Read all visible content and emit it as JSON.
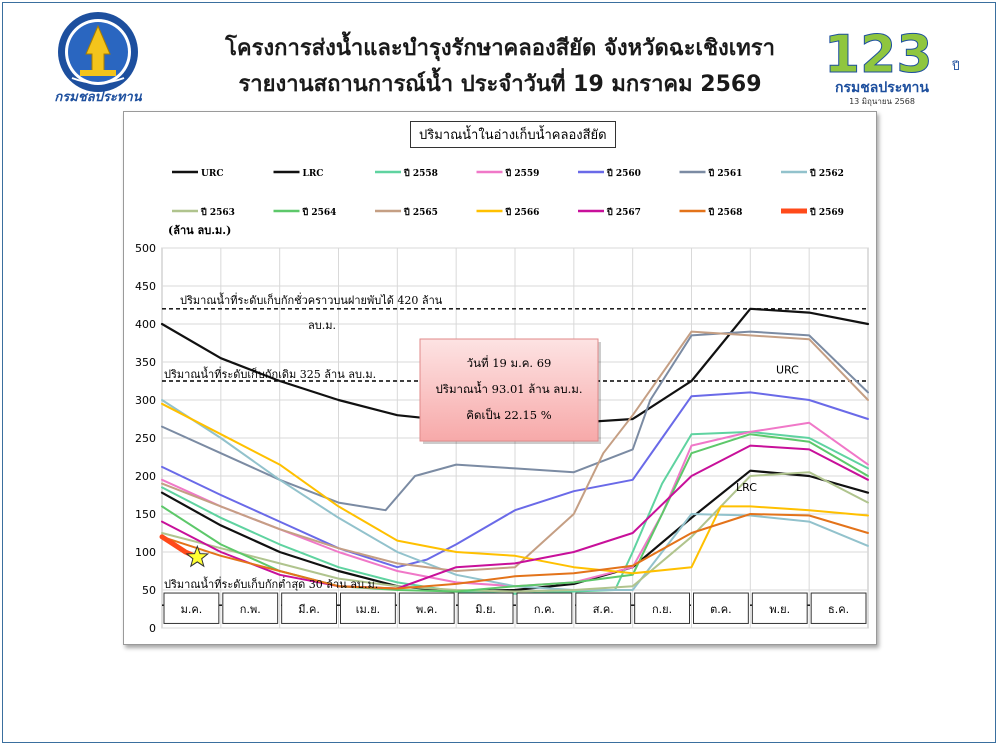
{
  "header": {
    "title_line1": "โครงการส่งน้ำและบำรุงรักษาคลองสียัด จังหวัดฉะเชิงเทรา",
    "title_line2": "รายงานสถานการณ์น้ำ ประจำวันที่ 19 มกราคม 2569",
    "left_logo_text": "กรมชลประทาน",
    "right_logo_number": "123",
    "right_logo_suffix": "ปี",
    "right_logo_org": "กรมชลประทาน",
    "right_logo_date": "13 มิถุนายน 2568"
  },
  "colors": {
    "URC": "#111111",
    "LRC": "#111111",
    "2558": "#5fd3a0",
    "2559": "#f078c8",
    "2560": "#6a6ae8",
    "2561": "#7b8ba3",
    "2562": "#92c2cc",
    "2563": "#b0c48e",
    "2564": "#5dc86a",
    "2565": "#c59f84",
    "2566": "#ffc000",
    "2567": "#c8109a",
    "2568": "#e3731a",
    "2569": "#ff4a1a"
  },
  "chart_data": {
    "type": "line",
    "title": "ปริมาณน้ำในอ่างเก็บน้ำคลองสียัด",
    "ylabel": "(ล้าน ลบ.ม.)",
    "ylim": [
      0,
      500
    ],
    "yticks": [
      0,
      50,
      100,
      150,
      200,
      250,
      300,
      350,
      400,
      450,
      500
    ],
    "xlim": [
      0,
      12
    ],
    "categories": [
      "ม.ค.",
      "ก.พ.",
      "มี.ค.",
      "เม.ย.",
      "พ.ค.",
      "มิ.ย.",
      "ก.ค.",
      "ส.ค.",
      "ก.ย.",
      "ต.ค.",
      "พ.ย.",
      "ธ.ค."
    ],
    "legend": "top",
    "reference_lines": [
      {
        "value": 420,
        "label_line1": "ปริมาณน้ำที่ระดับเก็บกักชั่วคราวบนฝายพับได้ 420 ล้าน",
        "label_line2": "ลบ.ม."
      },
      {
        "value": 325,
        "label": "ปริมาณน้ำที่ระดับเก็บกักเดิม 325 ล้าน ลบ.ม."
      },
      {
        "value": 30,
        "label": "ปริมาณน้ำที่ระดับเก็บกักต่ำสุด 30 ล้าน ลบ.ม."
      }
    ],
    "curve_labels": {
      "URC": "URC",
      "LRC": "LRC"
    },
    "annotation": {
      "line1": "วันที่ 19 ม.ค. 69",
      "line2": "ปริมาณน้ำ 93.01 ล้าน ลบ.ม.",
      "line3": "คิดเป็น 22.15 %"
    },
    "current_point": {
      "x": 0.6,
      "y": 93.01
    },
    "series": [
      {
        "key": "URC",
        "name": "URC",
        "x": [
          0,
          1,
          2,
          3,
          4,
          5,
          6,
          7,
          8,
          9,
          10,
          11,
          12
        ],
        "y": [
          400,
          355,
          325,
          300,
          280,
          272,
          270,
          270,
          275,
          325,
          420,
          415,
          400
        ]
      },
      {
        "key": "LRC",
        "name": "LRC",
        "x": [
          0,
          1,
          2,
          3,
          4,
          5,
          6,
          7,
          8,
          9,
          10,
          11,
          12
        ],
        "y": [
          178,
          135,
          100,
          75,
          55,
          48,
          50,
          58,
          80,
          145,
          207,
          200,
          178
        ]
      },
      {
        "key": "2558",
        "name": "ปี 2558",
        "x": [
          0,
          1,
          2,
          3,
          4,
          5,
          6,
          7,
          7.7,
          8,
          8.5,
          9,
          10,
          11,
          12
        ],
        "y": [
          185,
          145,
          110,
          80,
          60,
          48,
          45,
          48,
          50,
          100,
          190,
          255,
          258,
          250,
          210
        ]
      },
      {
        "key": "2559",
        "name": "ปี 2559",
        "x": [
          0,
          1,
          2,
          3,
          4,
          5,
          6,
          7,
          8,
          8.5,
          9,
          10,
          11,
          12
        ],
        "y": [
          195,
          160,
          130,
          100,
          75,
          60,
          55,
          60,
          80,
          150,
          240,
          258,
          270,
          215
        ]
      },
      {
        "key": "2560",
        "name": "ปี 2560",
        "x": [
          0,
          1,
          2,
          3,
          4,
          4.5,
          5,
          6,
          7,
          8,
          8.5,
          9,
          10,
          11,
          12
        ],
        "y": [
          212,
          175,
          140,
          105,
          80,
          90,
          110,
          155,
          180,
          195,
          250,
          305,
          310,
          300,
          275
        ]
      },
      {
        "key": "2561",
        "name": "ปี 2561",
        "x": [
          0,
          1,
          2,
          3,
          3.8,
          4.3,
          5,
          6,
          7,
          8,
          8.3,
          9,
          10,
          11,
          12
        ],
        "y": [
          265,
          230,
          195,
          165,
          155,
          200,
          215,
          210,
          205,
          235,
          300,
          385,
          390,
          385,
          310
        ]
      },
      {
        "key": "2562",
        "name": "ปี 2562",
        "x": [
          0,
          1,
          2,
          3,
          4,
          5,
          6,
          7,
          8,
          8.5,
          9,
          10,
          11,
          12
        ],
        "y": [
          300,
          250,
          195,
          145,
          100,
          70,
          55,
          50,
          50,
          100,
          150,
          148,
          140,
          108
        ]
      },
      {
        "key": "2563",
        "name": "ปี 2563",
        "x": [
          0,
          1,
          2,
          3,
          4,
          5,
          6,
          7,
          8,
          9,
          10,
          11,
          12
        ],
        "y": [
          125,
          105,
          85,
          65,
          55,
          50,
          48,
          50,
          55,
          120,
          200,
          205,
          165
        ]
      },
      {
        "key": "2564",
        "name": "ปี 2564",
        "x": [
          0,
          1,
          2,
          3,
          4,
          5,
          6,
          7,
          8,
          8.5,
          9,
          10,
          11,
          12
        ],
        "y": [
          160,
          110,
          75,
          55,
          50,
          48,
          55,
          60,
          70,
          150,
          230,
          255,
          245,
          200
        ]
      },
      {
        "key": "2565",
        "name": "ปี 2565",
        "x": [
          0,
          1,
          2,
          3,
          4,
          5,
          6,
          7,
          7.5,
          8,
          9,
          10,
          11,
          12
        ],
        "y": [
          190,
          160,
          130,
          105,
          85,
          75,
          80,
          150,
          230,
          280,
          390,
          385,
          380,
          300
        ]
      },
      {
        "key": "2566",
        "name": "ปี 2566",
        "x": [
          0,
          1,
          2,
          3,
          4,
          5,
          6,
          7,
          8,
          9,
          9.5,
          10,
          11,
          12
        ],
        "y": [
          295,
          255,
          215,
          160,
          115,
          100,
          95,
          80,
          72,
          80,
          160,
          160,
          155,
          148
        ]
      },
      {
        "key": "2567",
        "name": "ปี 2567",
        "x": [
          0,
          1,
          2,
          3,
          4,
          5,
          6,
          7,
          8,
          9,
          10,
          11,
          12
        ],
        "y": [
          140,
          100,
          70,
          55,
          52,
          80,
          85,
          100,
          125,
          200,
          240,
          235,
          195
        ]
      },
      {
        "key": "2568",
        "name": "ปี 2568",
        "x": [
          0,
          1,
          2,
          3,
          4,
          5,
          6,
          7,
          8,
          9,
          10,
          11,
          12
        ],
        "y": [
          120,
          95,
          75,
          55,
          52,
          58,
          68,
          72,
          82,
          125,
          150,
          148,
          125
        ]
      },
      {
        "key": "2569",
        "name": "ปี 2569",
        "x": [
          0,
          0.2,
          0.4,
          0.6
        ],
        "y": [
          120,
          110,
          100,
          93.01
        ]
      }
    ]
  }
}
